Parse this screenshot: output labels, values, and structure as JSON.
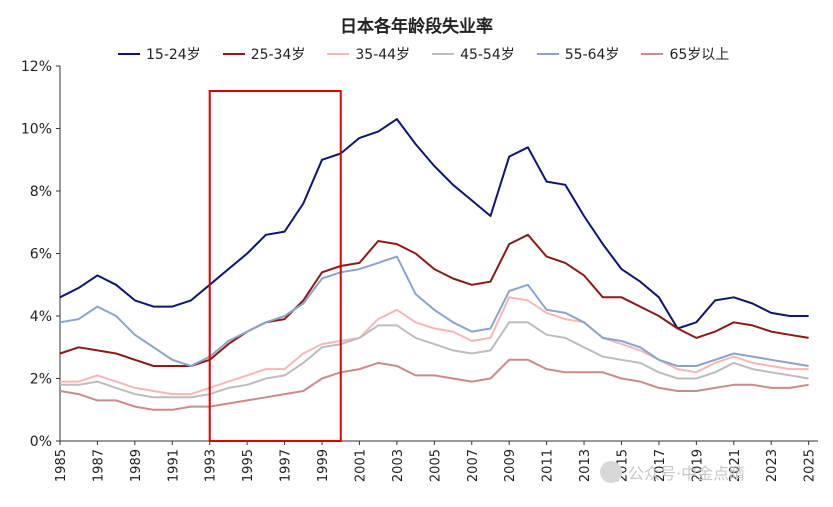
{
  "chart_data": {
    "type": "line",
    "title": "日本各年龄段失业率",
    "xlabel": "",
    "ylabel": "",
    "xlim": [
      1985,
      2025.5
    ],
    "ylim": [
      0,
      12
    ],
    "y_ticks": [
      "0%",
      "2%",
      "4%",
      "6%",
      "8%",
      "10%",
      "12%"
    ],
    "x_ticks": [
      "1985",
      "1987",
      "1989",
      "1991",
      "1993",
      "1995",
      "1997",
      "1999",
      "2001",
      "2003",
      "2005",
      "2007",
      "2009",
      "2011",
      "2013",
      "2015",
      "2017",
      "2019",
      "2021",
      "2023",
      "2025"
    ],
    "legend_position": "top",
    "highlight_box": {
      "x_start": 1993,
      "x_end": 2000,
      "y_bottom": 0,
      "y_top": 11.2,
      "color": "#e00000"
    },
    "series": [
      {
        "name": "15-24岁",
        "color": "#0d1773",
        "points": [
          [
            1985,
            4.6
          ],
          [
            1986,
            4.9
          ],
          [
            1987,
            5.3
          ],
          [
            1988,
            5.0
          ],
          [
            1989,
            4.5
          ],
          [
            1990,
            4.3
          ],
          [
            1991,
            4.3
          ],
          [
            1992,
            4.5
          ],
          [
            1993,
            5.0
          ],
          [
            1994,
            5.5
          ],
          [
            1995,
            6.0
          ],
          [
            1996,
            6.6
          ],
          [
            1997,
            6.7
          ],
          [
            1998,
            7.6
          ],
          [
            1999,
            9.0
          ],
          [
            2000,
            9.2
          ],
          [
            2001,
            9.7
          ],
          [
            2002,
            9.9
          ],
          [
            2003,
            10.3
          ],
          [
            2004,
            9.5
          ],
          [
            2005,
            8.8
          ],
          [
            2006,
            8.2
          ],
          [
            2007,
            7.7
          ],
          [
            2008,
            7.2
          ],
          [
            2009,
            9.1
          ],
          [
            2010,
            9.4
          ],
          [
            2011,
            8.3
          ],
          [
            2012,
            8.2
          ],
          [
            2013,
            7.2
          ],
          [
            2014,
            6.3
          ],
          [
            2015,
            5.5
          ],
          [
            2016,
            5.1
          ],
          [
            2017,
            4.6
          ],
          [
            2018,
            3.6
          ],
          [
            2019,
            3.8
          ],
          [
            2020,
            4.5
          ],
          [
            2021,
            4.6
          ],
          [
            2022,
            4.4
          ],
          [
            2023,
            4.1
          ],
          [
            2024,
            4.0
          ],
          [
            2025,
            4.0
          ]
        ]
      },
      {
        "name": "25-34岁",
        "color": "#8b1a1a",
        "points": [
          [
            1985,
            2.8
          ],
          [
            1986,
            3.0
          ],
          [
            1987,
            2.9
          ],
          [
            1988,
            2.8
          ],
          [
            1989,
            2.6
          ],
          [
            1990,
            2.4
          ],
          [
            1991,
            2.4
          ],
          [
            1992,
            2.4
          ],
          [
            1993,
            2.6
          ],
          [
            1994,
            3.1
          ],
          [
            1995,
            3.5
          ],
          [
            1996,
            3.8
          ],
          [
            1997,
            3.9
          ],
          [
            1998,
            4.5
          ],
          [
            1999,
            5.4
          ],
          [
            2000,
            5.6
          ],
          [
            2001,
            5.7
          ],
          [
            2002,
            6.4
          ],
          [
            2003,
            6.3
          ],
          [
            2004,
            6.0
          ],
          [
            2005,
            5.5
          ],
          [
            2006,
            5.2
          ],
          [
            2007,
            5.0
          ],
          [
            2008,
            5.1
          ],
          [
            2009,
            6.3
          ],
          [
            2010,
            6.6
          ],
          [
            2011,
            5.9
          ],
          [
            2012,
            5.7
          ],
          [
            2013,
            5.3
          ],
          [
            2014,
            4.6
          ],
          [
            2015,
            4.6
          ],
          [
            2016,
            4.3
          ],
          [
            2017,
            4.0
          ],
          [
            2018,
            3.6
          ],
          [
            2019,
            3.3
          ],
          [
            2020,
            3.5
          ],
          [
            2021,
            3.8
          ],
          [
            2022,
            3.7
          ],
          [
            2023,
            3.5
          ],
          [
            2024,
            3.4
          ],
          [
            2025,
            3.3
          ]
        ]
      },
      {
        "name": "35-44岁",
        "color": "#f4b8b8",
        "points": [
          [
            1985,
            1.9
          ],
          [
            1986,
            1.9
          ],
          [
            1987,
            2.1
          ],
          [
            1988,
            1.9
          ],
          [
            1989,
            1.7
          ],
          [
            1990,
            1.6
          ],
          [
            1991,
            1.5
          ],
          [
            1992,
            1.5
          ],
          [
            1993,
            1.7
          ],
          [
            1994,
            1.9
          ],
          [
            1995,
            2.1
          ],
          [
            1996,
            2.3
          ],
          [
            1997,
            2.3
          ],
          [
            1998,
            2.8
          ],
          [
            1999,
            3.1
          ],
          [
            2000,
            3.2
          ],
          [
            2001,
            3.3
          ],
          [
            2002,
            3.9
          ],
          [
            2003,
            4.2
          ],
          [
            2004,
            3.8
          ],
          [
            2005,
            3.6
          ],
          [
            2006,
            3.5
          ],
          [
            2007,
            3.2
          ],
          [
            2008,
            3.3
          ],
          [
            2009,
            4.6
          ],
          [
            2010,
            4.5
          ],
          [
            2011,
            4.1
          ],
          [
            2012,
            3.9
          ],
          [
            2013,
            3.8
          ],
          [
            2014,
            3.3
          ],
          [
            2015,
            3.1
          ],
          [
            2016,
            2.9
          ],
          [
            2017,
            2.6
          ],
          [
            2018,
            2.3
          ],
          [
            2019,
            2.2
          ],
          [
            2020,
            2.5
          ],
          [
            2021,
            2.7
          ],
          [
            2022,
            2.5
          ],
          [
            2023,
            2.4
          ],
          [
            2024,
            2.3
          ],
          [
            2025,
            2.3
          ]
        ]
      },
      {
        "name": "45-54岁",
        "color": "#bdbdbd",
        "points": [
          [
            1985,
            1.8
          ],
          [
            1986,
            1.8
          ],
          [
            1987,
            1.9
          ],
          [
            1988,
            1.7
          ],
          [
            1989,
            1.5
          ],
          [
            1990,
            1.4
          ],
          [
            1991,
            1.4
          ],
          [
            1992,
            1.4
          ],
          [
            1993,
            1.5
          ],
          [
            1994,
            1.7
          ],
          [
            1995,
            1.8
          ],
          [
            1996,
            2.0
          ],
          [
            1997,
            2.1
          ],
          [
            1998,
            2.5
          ],
          [
            1999,
            3.0
          ],
          [
            2000,
            3.1
          ],
          [
            2001,
            3.3
          ],
          [
            2002,
            3.7
          ],
          [
            2003,
            3.7
          ],
          [
            2004,
            3.3
          ],
          [
            2005,
            3.1
          ],
          [
            2006,
            2.9
          ],
          [
            2007,
            2.8
          ],
          [
            2008,
            2.9
          ],
          [
            2009,
            3.8
          ],
          [
            2010,
            3.8
          ],
          [
            2011,
            3.4
          ],
          [
            2012,
            3.3
          ],
          [
            2013,
            3.0
          ],
          [
            2014,
            2.7
          ],
          [
            2015,
            2.6
          ],
          [
            2016,
            2.5
          ],
          [
            2017,
            2.2
          ],
          [
            2018,
            2.0
          ],
          [
            2019,
            2.0
          ],
          [
            2020,
            2.2
          ],
          [
            2021,
            2.5
          ],
          [
            2022,
            2.3
          ],
          [
            2023,
            2.2
          ],
          [
            2024,
            2.1
          ],
          [
            2025,
            2.0
          ]
        ]
      },
      {
        "name": "55-64岁",
        "color": "#8aa5c9",
        "points": [
          [
            1985,
            3.8
          ],
          [
            1986,
            3.9
          ],
          [
            1987,
            4.3
          ],
          [
            1988,
            4.0
          ],
          [
            1989,
            3.4
          ],
          [
            1990,
            3.0
          ],
          [
            1991,
            2.6
          ],
          [
            1992,
            2.4
          ],
          [
            1993,
            2.7
          ],
          [
            1994,
            3.2
          ],
          [
            1995,
            3.5
          ],
          [
            1996,
            3.8
          ],
          [
            1997,
            4.0
          ],
          [
            1998,
            4.4
          ],
          [
            1999,
            5.2
          ],
          [
            2000,
            5.4
          ],
          [
            2001,
            5.5
          ],
          [
            2002,
            5.7
          ],
          [
            2003,
            5.9
          ],
          [
            2004,
            4.7
          ],
          [
            2005,
            4.2
          ],
          [
            2006,
            3.8
          ],
          [
            2007,
            3.5
          ],
          [
            2008,
            3.6
          ],
          [
            2009,
            4.8
          ],
          [
            2010,
            5.0
          ],
          [
            2011,
            4.2
          ],
          [
            2012,
            4.1
          ],
          [
            2013,
            3.8
          ],
          [
            2014,
            3.3
          ],
          [
            2015,
            3.2
          ],
          [
            2016,
            3.0
          ],
          [
            2017,
            2.6
          ],
          [
            2018,
            2.4
          ],
          [
            2019,
            2.4
          ],
          [
            2020,
            2.6
          ],
          [
            2021,
            2.8
          ],
          [
            2022,
            2.7
          ],
          [
            2023,
            2.6
          ],
          [
            2024,
            2.5
          ],
          [
            2025,
            2.4
          ]
        ]
      },
      {
        "name": "65岁以上",
        "color": "#c98b8b",
        "points": [
          [
            1985,
            1.6
          ],
          [
            1986,
            1.5
          ],
          [
            1987,
            1.3
          ],
          [
            1988,
            1.3
          ],
          [
            1989,
            1.1
          ],
          [
            1990,
            1.0
          ],
          [
            1991,
            1.0
          ],
          [
            1992,
            1.1
          ],
          [
            1993,
            1.1
          ],
          [
            1994,
            1.2
          ],
          [
            1995,
            1.3
          ],
          [
            1996,
            1.4
          ],
          [
            1997,
            1.5
          ],
          [
            1998,
            1.6
          ],
          [
            1999,
            2.0
          ],
          [
            2000,
            2.2
          ],
          [
            2001,
            2.3
          ],
          [
            2002,
            2.5
          ],
          [
            2003,
            2.4
          ],
          [
            2004,
            2.1
          ],
          [
            2005,
            2.1
          ],
          [
            2006,
            2.0
          ],
          [
            2007,
            1.9
          ],
          [
            2008,
            2.0
          ],
          [
            2009,
            2.6
          ],
          [
            2010,
            2.6
          ],
          [
            2011,
            2.3
          ],
          [
            2012,
            2.2
          ],
          [
            2013,
            2.2
          ],
          [
            2014,
            2.2
          ],
          [
            2015,
            2.0
          ],
          [
            2016,
            1.9
          ],
          [
            2017,
            1.7
          ],
          [
            2018,
            1.6
          ],
          [
            2019,
            1.6
          ],
          [
            2020,
            1.7
          ],
          [
            2021,
            1.8
          ],
          [
            2022,
            1.8
          ],
          [
            2023,
            1.7
          ],
          [
            2024,
            1.7
          ],
          [
            2025,
            1.8
          ]
        ]
      }
    ]
  },
  "watermark": {
    "text": "公众号·中金点睛"
  }
}
